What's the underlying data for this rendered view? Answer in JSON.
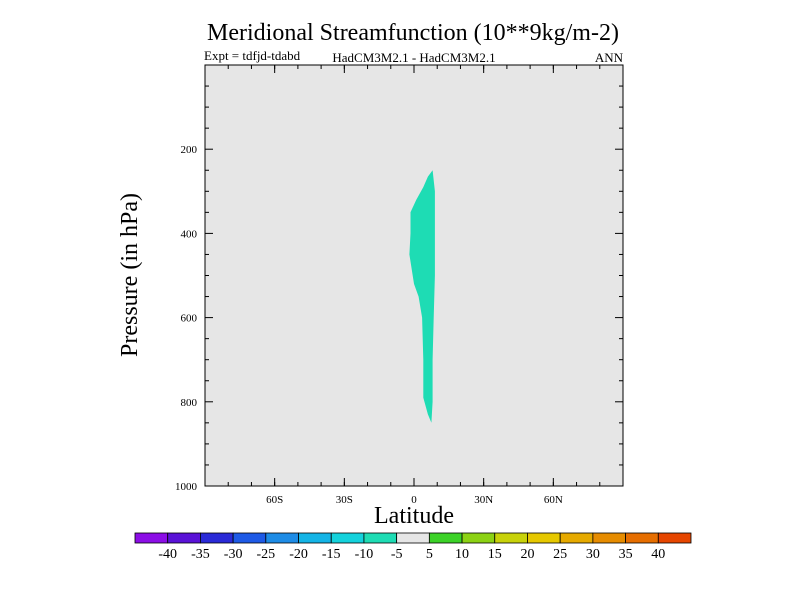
{
  "chart_data": {
    "type": "contour",
    "title": "Meridional Streamfunction (10**9kg/m-2)",
    "subtitle_left": "Expt = tdfjd-tdabd",
    "subtitle_center": "HadCM3M2.1 - HadCM3M2.1",
    "subtitle_right": "ANN",
    "xlabel": "Latitude",
    "ylabel": "Pressure (in hPa)",
    "xlim": [
      -90,
      90
    ],
    "ylim": [
      1000,
      0
    ],
    "x_ticks": [
      {
        "value": -60,
        "label": "60S"
      },
      {
        "value": -30,
        "label": "30S"
      },
      {
        "value": 0,
        "label": "0"
      },
      {
        "value": 30,
        "label": "30N"
      },
      {
        "value": 60,
        "label": "60N"
      }
    ],
    "y_ticks": [
      {
        "value": 200,
        "label": "200"
      },
      {
        "value": 400,
        "label": "400"
      },
      {
        "value": 600,
        "label": "600"
      },
      {
        "value": 800,
        "label": "800"
      },
      {
        "value": 1000,
        "label": "1000"
      }
    ],
    "background_level_color": "#e6e6e6",
    "region": {
      "level": "-10 to -5",
      "color": "#1edcb4",
      "outline": [
        [
          8.0,
          250
        ],
        [
          9.0,
          300
        ],
        [
          9.0,
          400
        ],
        [
          9.0,
          500
        ],
        [
          8.5,
          600
        ],
        [
          8.0,
          700
        ],
        [
          8.0,
          800
        ],
        [
          7.5,
          850
        ],
        [
          6.0,
          830
        ],
        [
          4.0,
          790
        ],
        [
          4.0,
          700
        ],
        [
          3.5,
          600
        ],
        [
          2.0,
          550
        ],
        [
          0.0,
          520
        ],
        [
          -2.0,
          450
        ],
        [
          -1.5,
          400
        ],
        [
          -1.5,
          350
        ],
        [
          1.0,
          320
        ],
        [
          4.0,
          290
        ],
        [
          6.0,
          265
        ],
        [
          8.0,
          250
        ]
      ]
    },
    "colorbar": {
      "colors": [
        "#8c0ee6",
        "#5a12d7",
        "#2a2ad7",
        "#1e5ae6",
        "#1e8ce6",
        "#14b4e6",
        "#14d2dc",
        "#1edcb4",
        "#e6e6e6",
        "#3cd228",
        "#8cd214",
        "#c8d20a",
        "#e6c800",
        "#e6aa00",
        "#e68c00",
        "#e66e00",
        "#e64600"
      ],
      "labels": [
        "-40",
        "-35",
        "-30",
        "-25",
        "-20",
        "-15",
        "-10",
        "-5",
        "5",
        "10",
        "15",
        "20",
        "25",
        "30",
        "35",
        "40"
      ]
    }
  }
}
